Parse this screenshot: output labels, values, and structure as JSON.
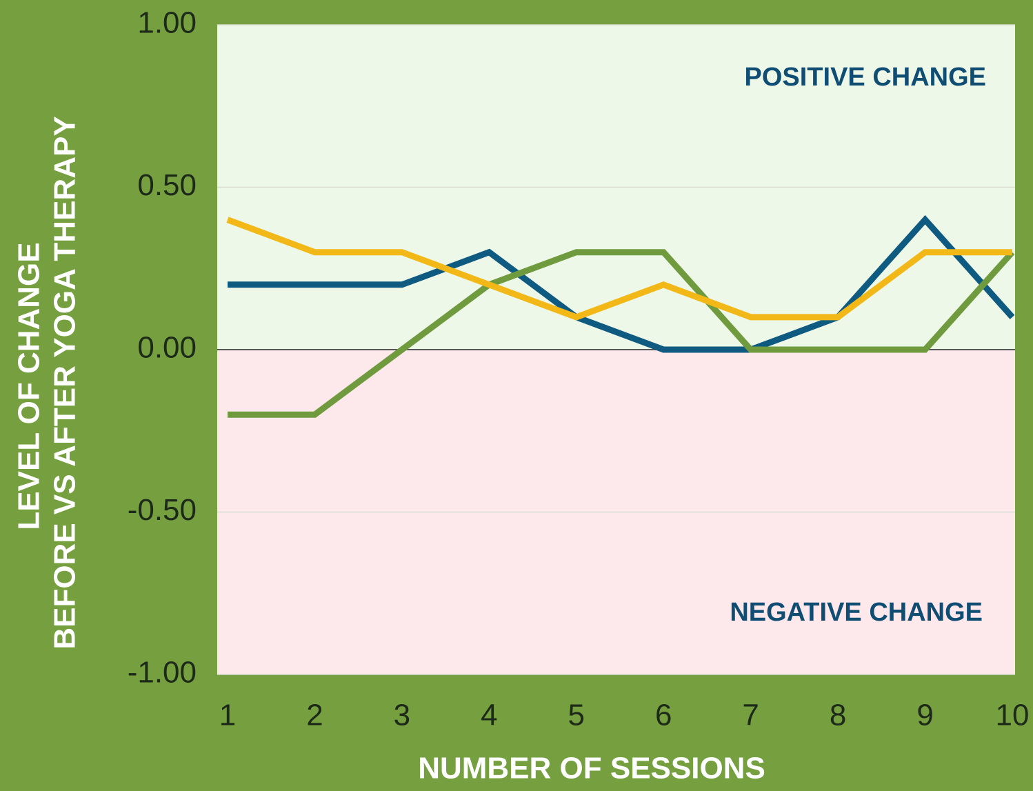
{
  "chart_data": {
    "type": "line",
    "x": [
      1,
      2,
      3,
      4,
      5,
      6,
      7,
      8,
      9,
      10
    ],
    "xlim": [
      1,
      10
    ],
    "xticks": [
      1,
      2,
      3,
      4,
      5,
      6,
      7,
      8,
      9,
      10
    ],
    "ylim": [
      -1,
      1
    ],
    "yticks": [
      {
        "value": 1,
        "label": "1.00"
      },
      {
        "value": 0.5,
        "label": "0.50"
      },
      {
        "value": 0,
        "label": "0.00"
      },
      {
        "value": -0.5,
        "label": "-0.50"
      },
      {
        "value": -1,
        "label": "-1.00"
      }
    ],
    "grid": true,
    "x_label": "NUMBER OF SESSIONS",
    "y_label": [
      "LEVEL OF CHANGE",
      "BEFORE VS AFTER YOGA THERAPY"
    ],
    "annotations": [
      "POSITIVE CHANGE",
      "NEGATIVE CHANGE"
    ],
    "series": [
      {
        "color": "#0f5a80",
        "values": [
          0.2,
          0.2,
          0.2,
          0.3,
          0.1,
          0,
          0,
          0.1,
          0.4,
          0.1
        ]
      },
      {
        "color": "#6f9b3e",
        "values": [
          -0.2,
          -0.2,
          0,
          0.2,
          0.3,
          0.3,
          0,
          0,
          0,
          0.3
        ]
      },
      {
        "color": "#f2b817",
        "values": [
          0.4,
          0.3,
          0.3,
          0.2,
          0.1,
          0.2,
          0.1,
          0.1,
          0.3,
          0.3
        ]
      }
    ]
  }
}
